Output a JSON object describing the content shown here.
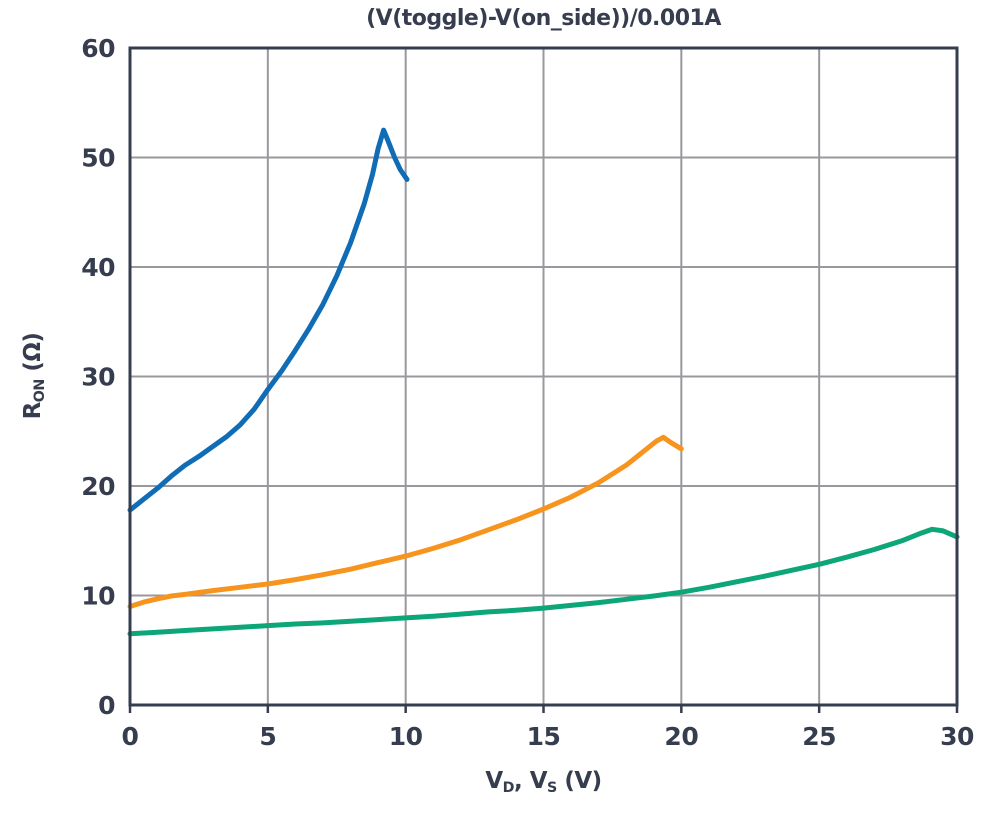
{
  "style": {
    "text_color": "#363D4F",
    "frame_color": "#363D4F",
    "grid_color": "#98989E",
    "background": "#FFFFFF"
  },
  "chart_data": {
    "type": "line",
    "title": "(V(toggle)-V(on_side))/0.001A",
    "xlabel": {
      "pre": "V",
      "sub1": "D",
      "mid": ", V",
      "sub2": "S",
      "unit": " (V)"
    },
    "ylabel": {
      "pre": "R",
      "sub1": "ON",
      "unit": " (Ω)"
    },
    "xlim": [
      0,
      30
    ],
    "ylim": [
      0,
      60
    ],
    "x_ticks": [
      0,
      5,
      10,
      15,
      20,
      25,
      30
    ],
    "y_ticks": [
      0,
      10,
      20,
      30,
      40,
      50,
      60
    ],
    "grid": true,
    "legend_position": "none",
    "series": [
      {
        "name": "blue-curve",
        "color": "#0F6CB5",
        "points": [
          [
            0,
            17.8
          ],
          [
            0.5,
            18.8
          ],
          [
            1,
            19.8
          ],
          [
            1.5,
            20.9
          ],
          [
            2,
            21.9
          ],
          [
            2.5,
            22.7
          ],
          [
            3,
            23.6
          ],
          [
            3.5,
            24.5
          ],
          [
            4,
            25.6
          ],
          [
            4.5,
            27.0
          ],
          [
            5,
            28.8
          ],
          [
            5.5,
            30.5
          ],
          [
            6,
            32.4
          ],
          [
            6.5,
            34.4
          ],
          [
            7,
            36.6
          ],
          [
            7.5,
            39.2
          ],
          [
            8,
            42.2
          ],
          [
            8.5,
            45.8
          ],
          [
            8.8,
            48.5
          ],
          [
            9.0,
            50.8
          ],
          [
            9.2,
            52.5
          ],
          [
            9.35,
            51.6
          ],
          [
            9.6,
            50.0
          ],
          [
            9.8,
            48.9
          ],
          [
            10.05,
            48.0
          ]
        ]
      },
      {
        "name": "orange-curve",
        "color": "#F7941D",
        "points": [
          [
            0,
            9.0
          ],
          [
            0.5,
            9.4
          ],
          [
            1,
            9.7
          ],
          [
            1.5,
            9.95
          ],
          [
            2,
            10.1
          ],
          [
            3,
            10.45
          ],
          [
            4,
            10.75
          ],
          [
            5,
            11.05
          ],
          [
            6,
            11.45
          ],
          [
            7,
            11.9
          ],
          [
            8,
            12.4
          ],
          [
            9,
            13.0
          ],
          [
            10,
            13.6
          ],
          [
            11,
            14.3
          ],
          [
            12,
            15.1
          ],
          [
            13,
            16.0
          ],
          [
            14,
            16.9
          ],
          [
            15,
            17.9
          ],
          [
            16,
            19.0
          ],
          [
            17,
            20.3
          ],
          [
            18,
            21.9
          ],
          [
            18.6,
            23.1
          ],
          [
            19.1,
            24.1
          ],
          [
            19.35,
            24.45
          ],
          [
            19.6,
            24.0
          ],
          [
            20,
            23.4
          ]
        ]
      },
      {
        "name": "green-curve",
        "color": "#0CA678",
        "points": [
          [
            0,
            6.5
          ],
          [
            1,
            6.65
          ],
          [
            2,
            6.8
          ],
          [
            3,
            6.95
          ],
          [
            4,
            7.1
          ],
          [
            5,
            7.25
          ],
          [
            6,
            7.4
          ],
          [
            7,
            7.5
          ],
          [
            8,
            7.65
          ],
          [
            9,
            7.8
          ],
          [
            10,
            7.95
          ],
          [
            11,
            8.1
          ],
          [
            12,
            8.3
          ],
          [
            13,
            8.5
          ],
          [
            14,
            8.65
          ],
          [
            15,
            8.85
          ],
          [
            16,
            9.1
          ],
          [
            17,
            9.35
          ],
          [
            18,
            9.65
          ],
          [
            19,
            9.95
          ],
          [
            20,
            10.3
          ],
          [
            21,
            10.75
          ],
          [
            22,
            11.25
          ],
          [
            23,
            11.75
          ],
          [
            24,
            12.3
          ],
          [
            25,
            12.85
          ],
          [
            26,
            13.5
          ],
          [
            27,
            14.2
          ],
          [
            28,
            15.0
          ],
          [
            28.7,
            15.7
          ],
          [
            29.1,
            16.05
          ],
          [
            29.5,
            15.9
          ],
          [
            30,
            15.35
          ]
        ]
      }
    ]
  }
}
